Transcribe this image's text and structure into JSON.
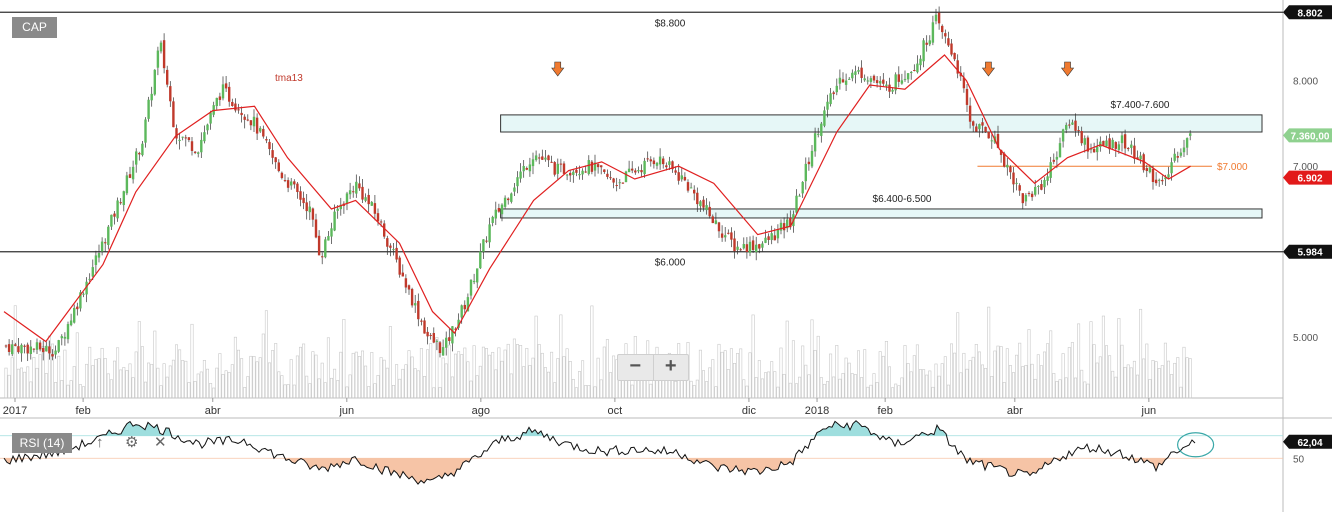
{
  "ticker": "CAP",
  "zoom": {
    "minus": "−",
    "plus": "+"
  },
  "rsi": {
    "label": "RSI (14)",
    "controls": {
      "up": "↑",
      "settings": "⚙",
      "close": "✕"
    },
    "current": "62,04",
    "mid_level": "50",
    "upper_level": 70,
    "lower_level": 50
  },
  "colors": {
    "candle_up": "#5cb85c",
    "candle_down": "#c0392b",
    "sma": "#e02020",
    "zone_fill": "#e6f7f7",
    "support_line": "#333333",
    "target_line": "#f07a30",
    "rsi_over": "#9edede",
    "rsi_under": "#f6c4a6",
    "price_tag_green": "#8fd18f",
    "price_tag_red": "#e21a1a",
    "arrow": "#f07a30"
  },
  "chart_data": {
    "type": "candlestick",
    "x_range": [
      "2016-12-27",
      "2018-06-22"
    ],
    "ylim": [
      4.5,
      8.85
    ],
    "y_ticks": [
      "8.000",
      "7.000",
      "6.000",
      "5.000"
    ],
    "x_ticks": [
      {
        "label": "2017",
        "date": "2017-01-01"
      },
      {
        "label": "feb",
        "date": "2017-02-01"
      },
      {
        "label": "abr",
        "date": "2017-04-01"
      },
      {
        "label": "jun",
        "date": "2017-06-01"
      },
      {
        "label": "ago",
        "date": "2017-08-01"
      },
      {
        "label": "oct",
        "date": "2017-10-01"
      },
      {
        "label": "dic",
        "date": "2017-12-01"
      },
      {
        "label": "2018",
        "date": "2018-01-01"
      },
      {
        "label": "feb",
        "date": "2018-02-01"
      },
      {
        "label": "abr",
        "date": "2018-04-01"
      },
      {
        "label": "jun",
        "date": "2018-06-01"
      }
    ],
    "price_path": [
      [
        "2016-12-27",
        4.9
      ],
      [
        "2017-01-20",
        4.85
      ],
      [
        "2017-02-10",
        6.1
      ],
      [
        "2017-02-28",
        7.3
      ],
      [
        "2017-03-08",
        8.45
      ],
      [
        "2017-03-15",
        7.4
      ],
      [
        "2017-03-25",
        7.2
      ],
      [
        "2017-04-05",
        7.9
      ],
      [
        "2017-04-20",
        7.5
      ],
      [
        "2017-05-01",
        6.95
      ],
      [
        "2017-05-15",
        6.5
      ],
      [
        "2017-05-20",
        5.95
      ],
      [
        "2017-05-28",
        6.5
      ],
      [
        "2017-06-05",
        6.8
      ],
      [
        "2017-06-15",
        6.4
      ],
      [
        "2017-06-25",
        5.8
      ],
      [
        "2017-07-08",
        5.0
      ],
      [
        "2017-07-15",
        4.85
      ],
      [
        "2017-07-25",
        5.4
      ],
      [
        "2017-08-05",
        6.3
      ],
      [
        "2017-08-15",
        6.75
      ],
      [
        "2017-08-25",
        7.15
      ],
      [
        "2017-09-05",
        6.95
      ],
      [
        "2017-09-20",
        7.0
      ],
      [
        "2017-10-01",
        6.8
      ],
      [
        "2017-10-20",
        7.1
      ],
      [
        "2017-11-01",
        6.85
      ],
      [
        "2017-11-15",
        6.35
      ],
      [
        "2017-11-25",
        6.05
      ],
      [
        "2017-12-08",
        6.1
      ],
      [
        "2017-12-20",
        6.35
      ],
      [
        "2018-01-02",
        7.5
      ],
      [
        "2018-01-12",
        8.05
      ],
      [
        "2018-01-22",
        8.1
      ],
      [
        "2018-02-01",
        7.9
      ],
      [
        "2018-02-15",
        8.2
      ],
      [
        "2018-02-24",
        8.7
      ],
      [
        "2018-03-05",
        8.25
      ],
      [
        "2018-03-12",
        7.5
      ],
      [
        "2018-03-22",
        7.35
      ],
      [
        "2018-04-05",
        6.6
      ],
      [
        "2018-04-15",
        6.85
      ],
      [
        "2018-04-26",
        7.55
      ],
      [
        "2018-05-05",
        7.2
      ],
      [
        "2018-05-20",
        7.3
      ],
      [
        "2018-05-30",
        7.0
      ],
      [
        "2018-06-08",
        6.75
      ],
      [
        "2018-06-12",
        7.1
      ],
      [
        "2018-06-20",
        7.36
      ]
    ],
    "sma": {
      "name": "tma13",
      "path": [
        [
          "2016-12-27",
          5.3
        ],
        [
          "2017-01-15",
          4.95
        ],
        [
          "2017-02-10",
          5.85
        ],
        [
          "2017-02-25",
          6.7
        ],
        [
          "2017-03-15",
          7.35
        ],
        [
          "2017-04-01",
          7.65
        ],
        [
          "2017-04-20",
          7.7
        ],
        [
          "2017-05-05",
          7.1
        ],
        [
          "2017-05-25",
          6.5
        ],
        [
          "2017-06-05",
          6.6
        ],
        [
          "2017-06-25",
          6.1
        ],
        [
          "2017-07-10",
          5.3
        ],
        [
          "2017-07-20",
          5.05
        ],
        [
          "2017-08-05",
          5.8
        ],
        [
          "2017-08-25",
          6.6
        ],
        [
          "2017-09-10",
          6.95
        ],
        [
          "2017-09-25",
          7.05
        ],
        [
          "2017-10-10",
          6.85
        ],
        [
          "2017-10-30",
          7.0
        ],
        [
          "2017-11-15",
          6.8
        ],
        [
          "2017-12-05",
          6.2
        ],
        [
          "2017-12-20",
          6.3
        ],
        [
          "2018-01-10",
          7.4
        ],
        [
          "2018-01-25",
          7.95
        ],
        [
          "2018-02-10",
          7.9
        ],
        [
          "2018-02-28",
          8.3
        ],
        [
          "2018-03-10",
          8.0
        ],
        [
          "2018-03-25",
          7.2
        ],
        [
          "2018-04-10",
          6.8
        ],
        [
          "2018-04-25",
          7.1
        ],
        [
          "2018-05-10",
          7.25
        ],
        [
          "2018-05-30",
          7.05
        ],
        [
          "2018-06-10",
          6.85
        ],
        [
          "2018-06-20",
          7.0
        ]
      ]
    },
    "zones": [
      {
        "low": 7.4,
        "high": 7.6,
        "label": "$7.400-7.600",
        "start": "2017-08-10"
      },
      {
        "low": 6.4,
        "high": 6.5,
        "label": "$6.400-6.500",
        "start": "2017-08-10"
      }
    ],
    "levels": [
      {
        "value": 8.8,
        "label": "$8.800",
        "tag": "8.802"
      },
      {
        "value": 6.0,
        "label": "$6.000",
        "tag": "5.984"
      },
      {
        "value": 7.0,
        "label": "$7.000",
        "start": "2018-03-15"
      }
    ],
    "arrows": [
      "2017-09-05",
      "2018-03-20",
      "2018-04-25"
    ],
    "price_tags": [
      {
        "value": 7.36,
        "label": "7.360,00",
        "kind": "green"
      },
      {
        "value": 6.902,
        "label": "6.902",
        "kind": "red"
      }
    ],
    "rsi_path": [
      [
        "2016-12-27",
        48
      ],
      [
        "2017-01-20",
        55
      ],
      [
        "2017-02-10",
        68
      ],
      [
        "2017-02-25",
        82
      ],
      [
        "2017-03-10",
        75
      ],
      [
        "2017-03-25",
        63
      ],
      [
        "2017-04-15",
        66
      ],
      [
        "2017-05-01",
        52
      ],
      [
        "2017-05-20",
        40
      ],
      [
        "2017-06-05",
        50
      ],
      [
        "2017-06-20",
        38
      ],
      [
        "2017-07-10",
        28
      ],
      [
        "2017-07-25",
        44
      ],
      [
        "2017-08-10",
        66
      ],
      [
        "2017-08-25",
        74
      ],
      [
        "2017-09-10",
        62
      ],
      [
        "2017-09-25",
        56
      ],
      [
        "2017-10-10",
        58
      ],
      [
        "2017-10-30",
        55
      ],
      [
        "2017-11-15",
        42
      ],
      [
        "2017-12-05",
        38
      ],
      [
        "2017-12-20",
        46
      ],
      [
        "2018-01-05",
        78
      ],
      [
        "2018-01-20",
        80
      ],
      [
        "2018-02-05",
        62
      ],
      [
        "2018-02-25",
        76
      ],
      [
        "2018-03-10",
        48
      ],
      [
        "2018-03-25",
        40
      ],
      [
        "2018-04-08",
        33
      ],
      [
        "2018-04-22",
        52
      ],
      [
        "2018-05-05",
        60
      ],
      [
        "2018-05-20",
        54
      ],
      [
        "2018-06-05",
        42
      ],
      [
        "2018-06-12",
        55
      ],
      [
        "2018-06-20",
        62
      ]
    ],
    "rsi_marker_date": "2018-06-20"
  }
}
